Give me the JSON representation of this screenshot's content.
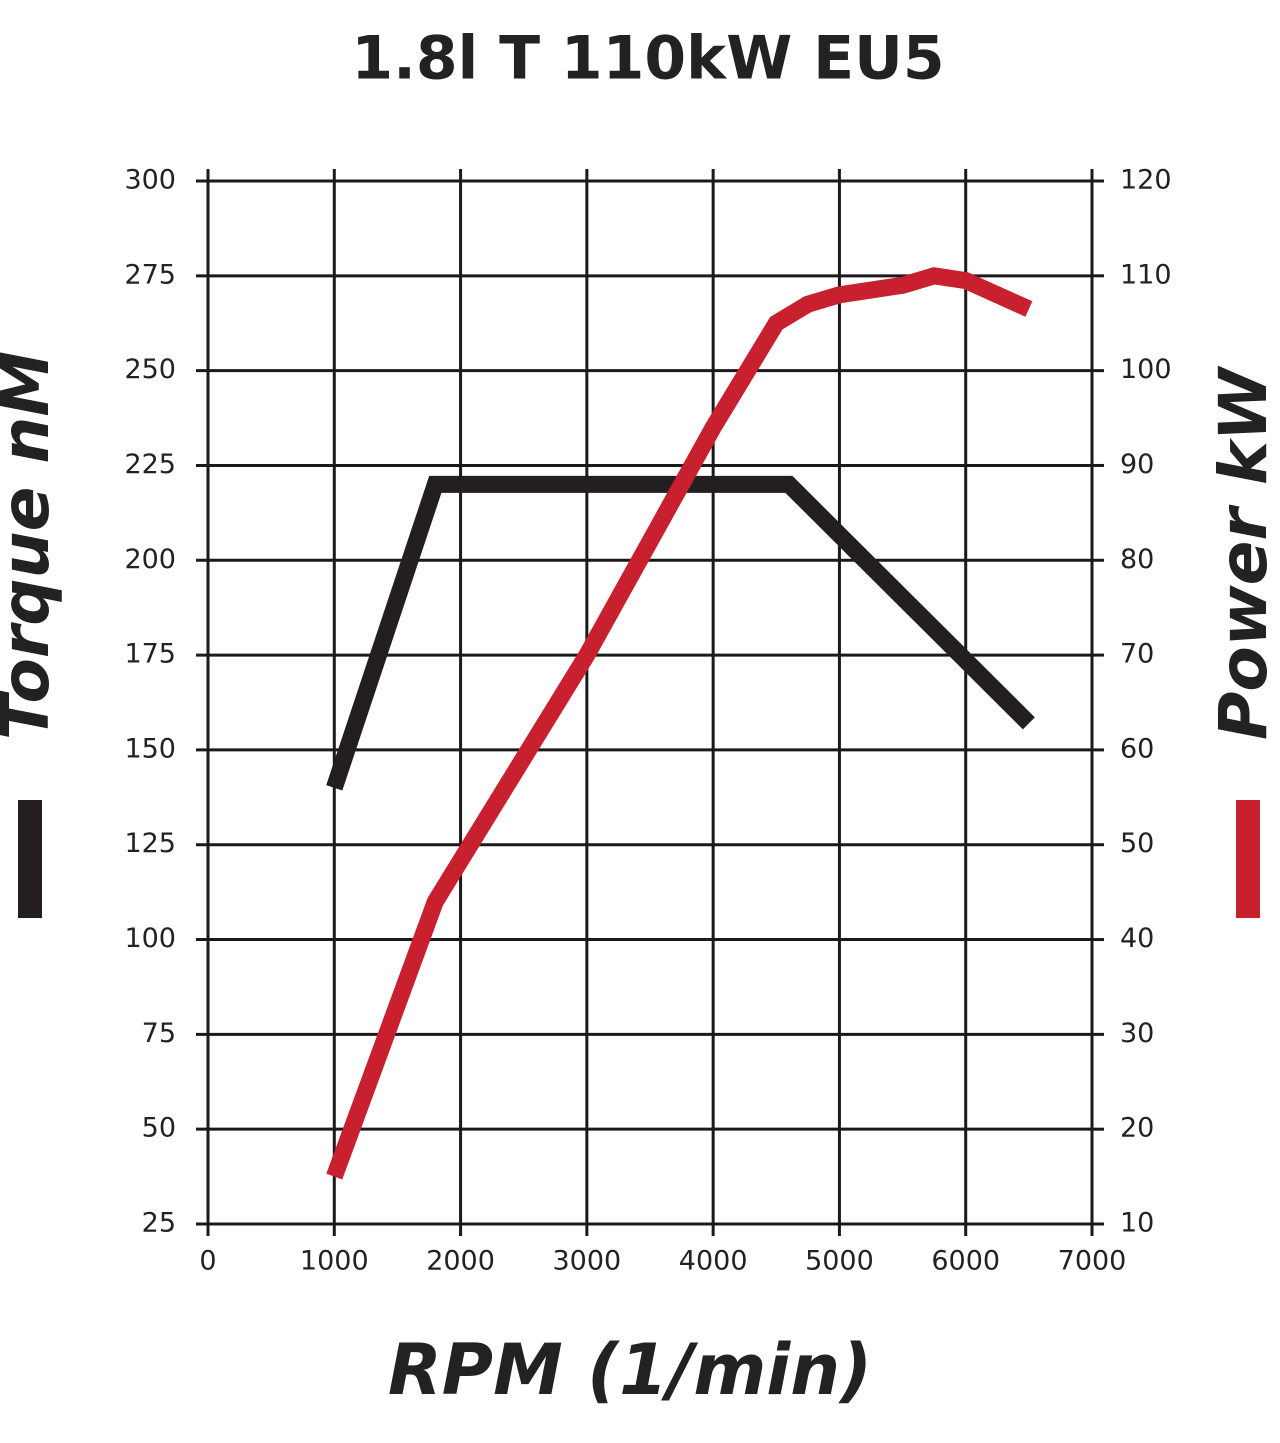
{
  "chart_data": {
    "type": "line",
    "title": "1.8l T 110kW EU5",
    "x_label": "RPM (1/min)",
    "xlim": [
      0,
      7000
    ],
    "xticks": [
      0,
      1000,
      2000,
      3000,
      4000,
      5000,
      6000,
      7000
    ],
    "ylim": [
      25,
      300
    ],
    "yticks": [
      25,
      50,
      75,
      100,
      125,
      150,
      175,
      200,
      225,
      250,
      275,
      300
    ],
    "y2lim": [
      10,
      120
    ],
    "y2ticks": [
      10,
      20,
      30,
      40,
      50,
      60,
      70,
      80,
      90,
      100,
      110,
      120
    ],
    "grid": true,
    "series": [
      {
        "name": "Torque nM",
        "color": "#231f20",
        "x": [
          1000,
          1800,
          4600,
          6500
        ],
        "values": [
          140,
          220,
          220,
          157
        ]
      },
      {
        "name": "Power kW",
        "color": "#c8202f",
        "axis": "y2",
        "x": [
          1000,
          1800,
          3000,
          4000,
          4500,
          4750,
          5000,
          5500,
          5750,
          6000,
          6500
        ],
        "values": [
          15,
          44,
          70,
          94,
          105,
          107,
          108,
          109,
          110,
          109.5,
          106.5
        ]
      }
    ]
  }
}
